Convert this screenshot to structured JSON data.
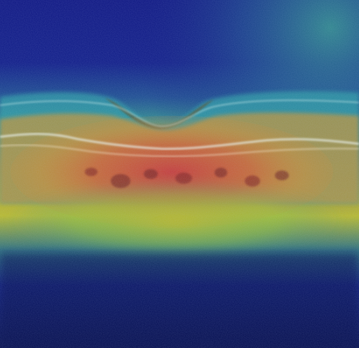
{
  "image": {
    "kind": "oct-retina-scan-heatmap-overlay",
    "colors": {
      "background_deep_blue": "#0b1380",
      "background_dark_navy": "#05094c",
      "teal": "#2f8a8c",
      "cyan": "#3fc7c7",
      "green": "#7fbf3f",
      "yellow_olive": "#b6b82a",
      "orange": "#d7862a",
      "red": "#c53636",
      "dark_red": "#6b1a1a",
      "light_band": "#e9efe3"
    }
  }
}
